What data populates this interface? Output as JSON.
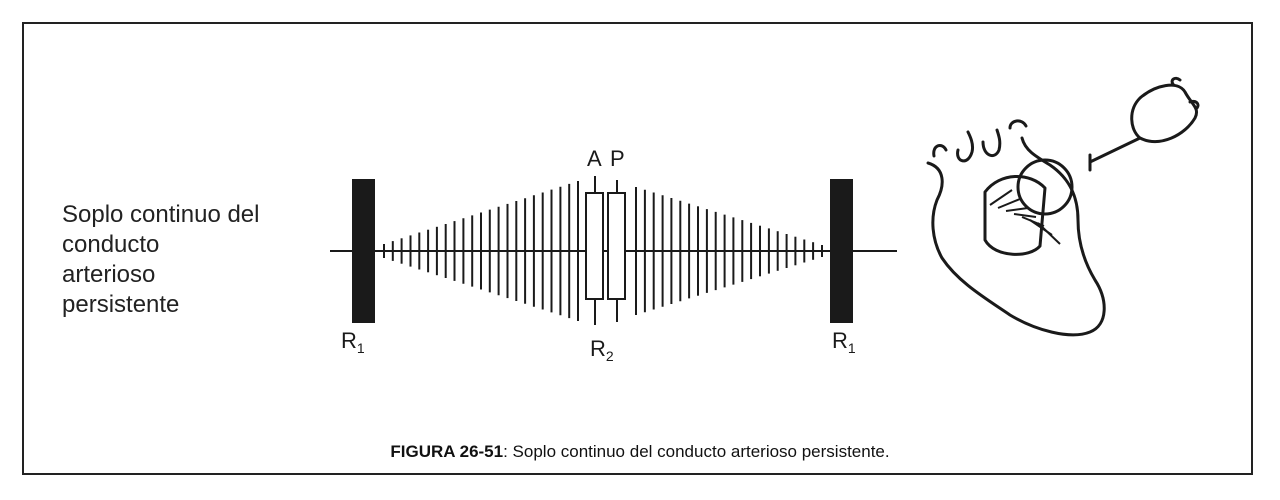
{
  "side_label": {
    "lines": [
      "Soplo continuo del",
      "conducto",
      "arterioso",
      "persistente"
    ]
  },
  "labels": {
    "r1_left": "R",
    "r1_left_sub": "1",
    "r1_right": "R",
    "r1_right_sub": "1",
    "r2": "R",
    "r2_sub": "2",
    "a": "A",
    "p": "P"
  },
  "caption": {
    "figure_id": "FIGURA 26-51",
    "text": ": Soplo continuo del conducto arterioso persistente."
  }
}
